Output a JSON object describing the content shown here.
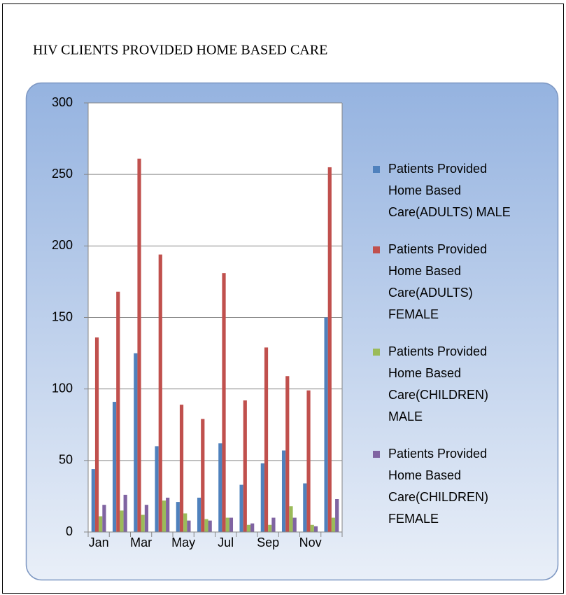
{
  "chart_data": {
    "type": "bar",
    "title": "HIV CLIENTS PROVIDED HOME BASED CARE",
    "categories": [
      "Jan",
      null,
      "Mar",
      null,
      "May",
      null,
      "Jul",
      null,
      "Sep",
      null,
      "Nov",
      null
    ],
    "series": [
      {
        "name": "Patients Provided Home Based Care(ADULTS) MALE",
        "color": "#4f81bd",
        "values": [
          44,
          91,
          125,
          60,
          21,
          24,
          62,
          33,
          48,
          57,
          34,
          150
        ]
      },
      {
        "name": "Patients Provided Home Based Care(ADULTS) FEMALE",
        "color": "#c0504d",
        "values": [
          136,
          168,
          261,
          194,
          89,
          79,
          181,
          92,
          129,
          109,
          99,
          255
        ]
      },
      {
        "name": "Patients Provided Home Based Care(CHILDREN) MALE",
        "color": "#9bbb59",
        "values": [
          11,
          15,
          12,
          22,
          13,
          9,
          10,
          5,
          5,
          18,
          5,
          10
        ]
      },
      {
        "name": "Patients Provided Home Based Care(CHILDREN) FEMALE",
        "color": "#8064a2",
        "values": [
          19,
          26,
          19,
          24,
          8,
          8,
          10,
          6,
          10,
          10,
          4,
          23
        ]
      }
    ],
    "ylim": [
      0,
      300
    ],
    "yticks": [
      0,
      50,
      100,
      150,
      200,
      250,
      300
    ],
    "grid": true,
    "legend": "right"
  }
}
